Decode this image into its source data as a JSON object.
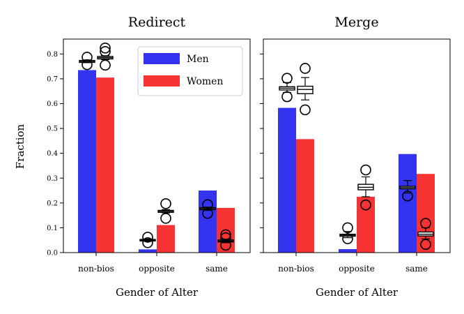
{
  "figure": {
    "ylabel": "Fraction",
    "ylim": [
      0,
      0.86
    ],
    "yticks": [
      "0.0",
      "0.1",
      "0.2",
      "0.3",
      "0.4",
      "0.5",
      "0.6",
      "0.7",
      "0.8"
    ]
  },
  "legend": {
    "placement": "top-right",
    "entries": [
      {
        "label": "Men",
        "color": "#3333f0"
      },
      {
        "label": "Women",
        "color": "#f73333"
      }
    ]
  },
  "chart_data": [
    {
      "type": "bar",
      "title": "Redirect",
      "xlabel": "Gender of Alter",
      "categories": [
        "non-bios",
        "opposite",
        "same"
      ],
      "series": [
        {
          "name": "Men",
          "color": "#3333f0",
          "values": [
            0.735,
            0.013,
            0.25
          ],
          "box": {
            "median": [
              0.77,
              0.05,
              0.177
            ],
            "q1": [
              0.766,
              0.047,
              0.173
            ],
            "q3": [
              0.774,
              0.053,
              0.181
            ],
            "whisker_low": [
              0.765,
              0.045,
              0.17
            ],
            "whisker_high": [
              0.776,
              0.055,
              0.183
            ],
            "outliers": [
              [
                0.787,
                0.757
              ],
              [
                0.062,
                0.04
              ],
              [
                0.193,
                0.158
              ]
            ]
          }
        },
        {
          "name": "Women",
          "color": "#f73333",
          "values": [
            0.705,
            0.111,
            0.18
          ],
          "box": {
            "median": [
              0.785,
              0.166,
              0.047
            ],
            "q1": [
              0.78,
              0.162,
              0.043
            ],
            "q3": [
              0.79,
              0.17,
              0.051
            ],
            "whisker_low": [
              0.777,
              0.16,
              0.04
            ],
            "whisker_high": [
              0.793,
              0.173,
              0.054
            ],
            "outliers": [
              [
                0.824,
                0.81,
                0.755
              ],
              [
                0.197,
                0.138
              ],
              [
                0.072,
                0.06,
                0.03
              ]
            ]
          }
        }
      ]
    },
    {
      "type": "bar",
      "title": "Merge",
      "xlabel": "Gender of Alter",
      "categories": [
        "non-bios",
        "opposite",
        "same"
      ],
      "series": [
        {
          "name": "Men",
          "color": "#3333f0",
          "values": [
            0.583,
            0.014,
            0.397
          ],
          "box": {
            "median": [
              0.662,
              0.07,
              0.262
            ],
            "q1": [
              0.655,
              0.066,
              0.257
            ],
            "q3": [
              0.668,
              0.074,
              0.267
            ],
            "whisker_low": [
              0.645,
              0.06,
              0.24
            ],
            "whisker_high": [
              0.685,
              0.085,
              0.29
            ],
            "outliers": [
              [
                0.702,
                0.628
              ],
              [
                0.1,
                0.056
              ],
              [
                0.228
              ]
            ]
          }
        },
        {
          "name": "Women",
          "color": "#f73333",
          "values": [
            0.457,
            0.225,
            0.317
          ],
          "box": {
            "median": [
              0.657,
              0.263,
              0.074
            ],
            "q1": [
              0.64,
              0.253,
              0.067
            ],
            "q3": [
              0.67,
              0.275,
              0.083
            ],
            "whisker_low": [
              0.615,
              0.225,
              0.055
            ],
            "whisker_high": [
              0.705,
              0.305,
              0.1
            ],
            "outliers": [
              [
                0.742,
                0.575
              ],
              [
                0.333,
                0.192
              ],
              [
                0.118,
                0.033
              ]
            ]
          }
        }
      ]
    }
  ]
}
